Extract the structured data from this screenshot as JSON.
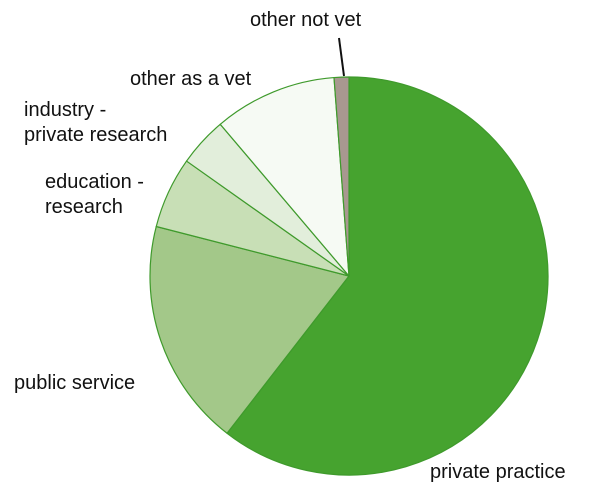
{
  "chart_data": {
    "type": "pie",
    "start_angle_deg": 0,
    "direction": "clockwise",
    "slices": [
      {
        "label": "private practice",
        "value": 60.5,
        "color": "#46a32f"
      },
      {
        "label": "public service",
        "value": 18.5,
        "color": "#a3c889"
      },
      {
        "label": "education - research",
        "value": 5.8,
        "color": "#c8dfb6"
      },
      {
        "label": "industry - private research",
        "value": 4.0,
        "color": "#e2eedb"
      },
      {
        "label": "other as a vet",
        "value": 10.0,
        "color": "#f6faf4"
      },
      {
        "label": "other not vet",
        "value": 1.2,
        "color": "#a89890"
      }
    ],
    "label_lines": [
      [
        "private practice"
      ],
      [
        "public service"
      ],
      [
        "education -",
        "research"
      ],
      [
        "industry -",
        "private research"
      ],
      [
        "other as a vet"
      ],
      [
        "other not vet"
      ]
    ]
  }
}
